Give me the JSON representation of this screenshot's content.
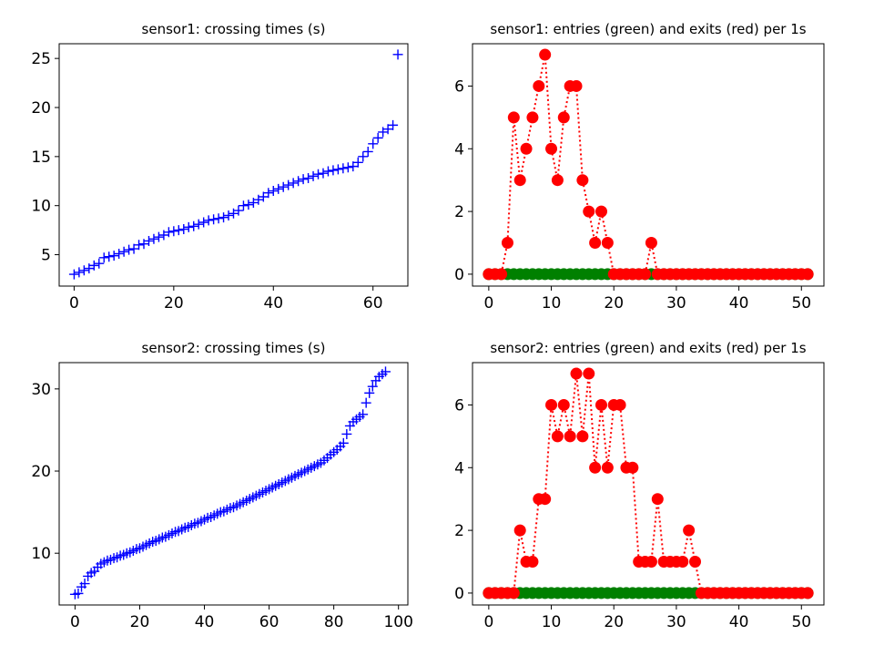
{
  "chart_data": [
    {
      "type": "scatter",
      "title": "sensor1: crossing times (s)",
      "marker": "+",
      "color": "#0000ff",
      "xlim": [
        -3,
        67
      ],
      "ylim": [
        1.8,
        26.5
      ],
      "xticks": [
        "0",
        "20",
        "40",
        "60"
      ],
      "yticks": [
        "5",
        "10",
        "15",
        "20",
        "25"
      ],
      "y": [
        3.0,
        3.2,
        3.4,
        3.6,
        3.9,
        4.1,
        4.7,
        4.8,
        4.9,
        5.1,
        5.3,
        5.5,
        5.6,
        6.0,
        6.1,
        6.4,
        6.6,
        6.8,
        7.0,
        7.3,
        7.4,
        7.5,
        7.6,
        7.8,
        7.9,
        8.1,
        8.3,
        8.5,
        8.6,
        8.7,
        8.8,
        9.0,
        9.2,
        9.5,
        10.0,
        10.1,
        10.3,
        10.6,
        10.9,
        11.3,
        11.5,
        11.7,
        11.9,
        12.1,
        12.3,
        12.5,
        12.7,
        12.8,
        13.0,
        13.2,
        13.3,
        13.5,
        13.6,
        13.7,
        13.8,
        13.9,
        14.0,
        14.4,
        15.0,
        15.5,
        16.3,
        16.9,
        17.5,
        17.8,
        18.2,
        25.4
      ]
    },
    {
      "type": "line",
      "title": "sensor1: entries (green) and exits (red) per 1s",
      "xlim": [
        -2.6,
        53.6
      ],
      "ylim": [
        -0.38,
        7.35
      ],
      "xticks": [
        "0",
        "10",
        "20",
        "30",
        "40",
        "50"
      ],
      "yticks": [
        "0",
        "2",
        "4",
        "6"
      ],
      "x": [
        0,
        1,
        2,
        3,
        4,
        5,
        6,
        7,
        8,
        9,
        10,
        11,
        12,
        13,
        14,
        15,
        16,
        17,
        18,
        19,
        20,
        21,
        22,
        23,
        24,
        25,
        26,
        27,
        28,
        29,
        30,
        31,
        32,
        33,
        34,
        35,
        36,
        37,
        38,
        39,
        40,
        41,
        42,
        43,
        44,
        45,
        46,
        47,
        48,
        49,
        50,
        51
      ],
      "series": [
        {
          "color": "#008000",
          "values": [
            0,
            0,
            0,
            0,
            0,
            0,
            0,
            0,
            0,
            0,
            0,
            0,
            0,
            0,
            0,
            0,
            0,
            0,
            0,
            0,
            0,
            0,
            0,
            0,
            0,
            0,
            0,
            0,
            0,
            0,
            0,
            0,
            0,
            0,
            0,
            0,
            0,
            0,
            0,
            0,
            0,
            0,
            0,
            0,
            0,
            0,
            0,
            0,
            0,
            0,
            0,
            0
          ]
        },
        {
          "color": "#ff0000",
          "values": [
            0,
            0,
            0,
            1,
            5,
            3,
            4,
            5,
            6,
            7,
            4,
            3,
            5,
            6,
            6,
            3,
            2,
            1,
            2,
            1,
            0,
            0,
            0,
            0,
            0,
            0,
            1,
            0,
            0,
            0,
            0,
            0,
            0,
            0,
            0,
            0,
            0,
            0,
            0,
            0,
            0,
            0,
            0,
            0,
            0,
            0,
            0,
            0,
            0,
            0,
            0,
            0
          ]
        }
      ],
      "green_range": [
        3,
        19
      ]
    },
    {
      "type": "scatter",
      "title": "sensor2: crossing times (s)",
      "marker": "+",
      "color": "#0000ff",
      "xlim": [
        -4.9,
        102.9
      ],
      "ylim": [
        3.7,
        33.2
      ],
      "xticks": [
        "0",
        "20",
        "40",
        "60",
        "80",
        "100"
      ],
      "yticks": [
        "10",
        "20",
        "30"
      ],
      "y": [
        5.0,
        5.1,
        5.9,
        6.3,
        7.2,
        7.6,
        7.8,
        8.3,
        8.7,
        8.9,
        9.1,
        9.2,
        9.4,
        9.5,
        9.7,
        9.8,
        10.0,
        10.1,
        10.3,
        10.5,
        10.6,
        10.8,
        11.0,
        11.2,
        11.4,
        11.5,
        11.7,
        11.9,
        12.0,
        12.2,
        12.4,
        12.6,
        12.7,
        12.9,
        13.1,
        13.2,
        13.4,
        13.6,
        13.7,
        13.9,
        14.1,
        14.3,
        14.4,
        14.6,
        14.8,
        15.0,
        15.1,
        15.3,
        15.5,
        15.6,
        15.8,
        16.0,
        16.2,
        16.4,
        16.6,
        16.8,
        17.0,
        17.2,
        17.4,
        17.6,
        17.8,
        18.0,
        18.2,
        18.4,
        18.6,
        18.8,
        19.0,
        19.2,
        19.4,
        19.6,
        19.8,
        20.0,
        20.2,
        20.4,
        20.6,
        20.8,
        21.0,
        21.3,
        21.6,
        22.0,
        22.3,
        22.6,
        23.0,
        23.4,
        24.5,
        25.5,
        26.0,
        26.3,
        26.6,
        26.9,
        28.3,
        29.5,
        30.3,
        31.0,
        31.5,
        31.8,
        32.1
      ]
    },
    {
      "type": "line",
      "title": "sensor2: entries (green) and exits (red) per 1s",
      "xlim": [
        -2.6,
        53.6
      ],
      "ylim": [
        -0.38,
        7.35
      ],
      "xticks": [
        "0",
        "10",
        "20",
        "30",
        "40",
        "50"
      ],
      "yticks": [
        "0",
        "2",
        "4",
        "6"
      ],
      "x": [
        0,
        1,
        2,
        3,
        4,
        5,
        6,
        7,
        8,
        9,
        10,
        11,
        12,
        13,
        14,
        15,
        16,
        17,
        18,
        19,
        20,
        21,
        22,
        23,
        24,
        25,
        26,
        27,
        28,
        29,
        30,
        31,
        32,
        33,
        34,
        35,
        36,
        37,
        38,
        39,
        40,
        41,
        42,
        43,
        44,
        45,
        46,
        47,
        48,
        49,
        50,
        51
      ],
      "series": [
        {
          "color": "#008000",
          "values": [
            0,
            0,
            0,
            0,
            0,
            0,
            0,
            0,
            0,
            0,
            0,
            0,
            0,
            0,
            0,
            0,
            0,
            0,
            0,
            0,
            0,
            0,
            0,
            0,
            0,
            0,
            0,
            0,
            0,
            0,
            0,
            0,
            0,
            0,
            0,
            0,
            0,
            0,
            0,
            0,
            0,
            0,
            0,
            0,
            0,
            0,
            0,
            0,
            0,
            0,
            0,
            0
          ]
        },
        {
          "color": "#ff0000",
          "values": [
            0,
            0,
            0,
            0,
            0,
            2,
            1,
            1,
            3,
            3,
            6,
            5,
            6,
            5,
            7,
            5,
            7,
            4,
            6,
            4,
            6,
            6,
            4,
            4,
            1,
            1,
            1,
            3,
            1,
            1,
            1,
            1,
            2,
            1,
            0,
            0,
            0,
            0,
            0,
            0,
            0,
            0,
            0,
            0,
            0,
            0,
            0,
            0,
            0,
            0,
            0,
            0
          ]
        }
      ],
      "green_range": [
        5,
        33
      ]
    }
  ]
}
